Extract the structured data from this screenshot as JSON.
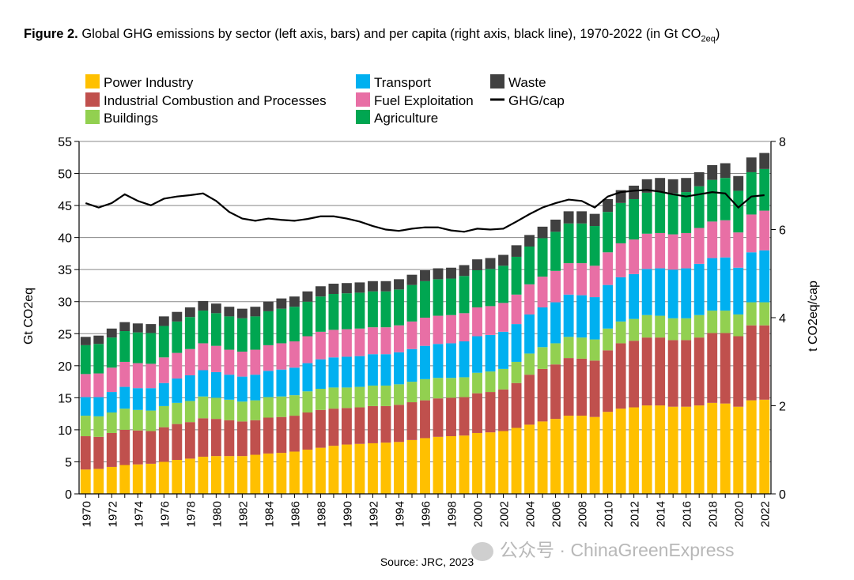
{
  "figure": {
    "label": "Figure 2.",
    "title_text": "Global GHG emissions by sector (left axis, bars) and per capita (right axis, black line), 1970-2022 (in Gt CO",
    "title_sub": "2eq",
    "title_end": ")",
    "source": "Source: JRC, 2023",
    "watermark": "公众号 · ChinaGreenExpress"
  },
  "chart_data": {
    "type": "bar",
    "stacked": true,
    "title": "Global GHG emissions by sector (left axis, bars) and per capita (right axis, black line), 1970-2022 (in Gt CO2eq)",
    "ylabel_left": "Gt CO2eq",
    "ylabel_right": "t CO2eq/cap",
    "ylim_left": [
      0,
      55
    ],
    "ylim_right": [
      0,
      8
    ],
    "yticks_left": [
      0,
      5,
      10,
      15,
      20,
      25,
      30,
      35,
      40,
      45,
      50,
      55
    ],
    "yticks_right": [
      0,
      2,
      4,
      6,
      8
    ],
    "grid": true,
    "legend_position": "top",
    "categories": [
      "1970",
      "1971",
      "1972",
      "1973",
      "1974",
      "1975",
      "1976",
      "1977",
      "1978",
      "1979",
      "1980",
      "1981",
      "1982",
      "1983",
      "1984",
      "1985",
      "1986",
      "1987",
      "1988",
      "1989",
      "1990",
      "1991",
      "1992",
      "1993",
      "1994",
      "1995",
      "1996",
      "1997",
      "1998",
      "1999",
      "2000",
      "2001",
      "2002",
      "2003",
      "2004",
      "2005",
      "2006",
      "2007",
      "2008",
      "2009",
      "2010",
      "2011",
      "2012",
      "2013",
      "2014",
      "2015",
      "2016",
      "2017",
      "2018",
      "2019",
      "2020",
      "2021",
      "2022"
    ],
    "series": [
      {
        "name": "Power Industry",
        "color": "#ffc000",
        "values": [
          3.8,
          3.9,
          4.2,
          4.5,
          4.6,
          4.7,
          5.0,
          5.3,
          5.5,
          5.8,
          5.9,
          5.9,
          5.9,
          6.1,
          6.3,
          6.4,
          6.6,
          6.9,
          7.2,
          7.5,
          7.7,
          7.8,
          7.9,
          8.0,
          8.1,
          8.4,
          8.7,
          8.9,
          9.0,
          9.1,
          9.5,
          9.6,
          9.8,
          10.3,
          10.8,
          11.3,
          11.7,
          12.2,
          12.2,
          12.0,
          12.8,
          13.3,
          13.5,
          13.8,
          13.8,
          13.6,
          13.6,
          13.8,
          14.2,
          14.1,
          13.6,
          14.6,
          14.7
        ]
      },
      {
        "name": "Industrial Combustion and Processes",
        "color": "#c0504d",
        "values": [
          5.2,
          5.0,
          5.3,
          5.5,
          5.3,
          5.1,
          5.4,
          5.6,
          5.7,
          6.0,
          5.8,
          5.6,
          5.4,
          5.4,
          5.6,
          5.6,
          5.6,
          5.8,
          5.9,
          5.8,
          5.7,
          5.7,
          5.8,
          5.7,
          5.8,
          5.9,
          5.9,
          6.0,
          6.0,
          6.0,
          6.2,
          6.3,
          6.5,
          7.0,
          7.8,
          8.2,
          8.5,
          9.0,
          8.9,
          8.8,
          9.6,
          10.2,
          10.4,
          10.6,
          10.6,
          10.4,
          10.4,
          10.6,
          10.9,
          11.0,
          11.0,
          11.7,
          11.6
        ]
      },
      {
        "name": "Buildings",
        "color": "#92d050",
        "values": [
          3.2,
          3.2,
          3.2,
          3.3,
          3.2,
          3.2,
          3.3,
          3.3,
          3.3,
          3.4,
          3.3,
          3.2,
          3.1,
          3.1,
          3.2,
          3.2,
          3.2,
          3.3,
          3.3,
          3.3,
          3.2,
          3.2,
          3.2,
          3.2,
          3.2,
          3.2,
          3.3,
          3.2,
          3.1,
          3.1,
          3.2,
          3.2,
          3.2,
          3.3,
          3.3,
          3.4,
          3.3,
          3.3,
          3.3,
          3.3,
          3.4,
          3.4,
          3.4,
          3.5,
          3.4,
          3.4,
          3.4,
          3.5,
          3.5,
          3.5,
          3.4,
          3.6,
          3.6
        ]
      },
      {
        "name": "Transport",
        "color": "#00b0f0",
        "values": [
          2.9,
          3.0,
          3.2,
          3.4,
          3.4,
          3.5,
          3.6,
          3.8,
          4.0,
          4.1,
          4.0,
          3.9,
          3.9,
          4.0,
          4.1,
          4.2,
          4.3,
          4.4,
          4.6,
          4.7,
          4.8,
          4.8,
          4.9,
          4.9,
          5.0,
          5.1,
          5.2,
          5.3,
          5.4,
          5.6,
          5.7,
          5.7,
          5.8,
          5.9,
          6.1,
          6.2,
          6.4,
          6.6,
          6.6,
          6.6,
          6.8,
          6.9,
          7.0,
          7.2,
          7.4,
          7.6,
          7.8,
          8.0,
          8.2,
          8.3,
          7.3,
          7.8,
          8.1
        ]
      },
      {
        "name": "Fuel Exploitation",
        "color": "#e86fa5",
        "values": [
          3.6,
          3.7,
          3.8,
          3.9,
          3.9,
          3.8,
          4.0,
          4.0,
          4.1,
          4.2,
          4.1,
          3.9,
          3.9,
          3.9,
          4.0,
          4.1,
          4.1,
          4.2,
          4.3,
          4.3,
          4.3,
          4.3,
          4.2,
          4.2,
          4.2,
          4.3,
          4.4,
          4.4,
          4.4,
          4.4,
          4.5,
          4.5,
          4.5,
          4.6,
          4.7,
          4.8,
          4.9,
          4.9,
          5.0,
          4.9,
          5.1,
          5.3,
          5.4,
          5.5,
          5.5,
          5.5,
          5.5,
          5.6,
          5.7,
          5.8,
          5.5,
          5.9,
          6.2
        ]
      },
      {
        "name": "Agriculture",
        "color": "#00a651",
        "values": [
          4.5,
          4.6,
          4.7,
          4.8,
          4.8,
          4.8,
          4.9,
          4.9,
          5.0,
          5.1,
          5.1,
          5.2,
          5.2,
          5.2,
          5.3,
          5.4,
          5.4,
          5.4,
          5.5,
          5.6,
          5.6,
          5.6,
          5.6,
          5.6,
          5.6,
          5.7,
          5.7,
          5.7,
          5.7,
          5.8,
          5.8,
          5.8,
          5.8,
          5.9,
          5.9,
          6.0,
          6.1,
          6.2,
          6.2,
          6.2,
          6.3,
          6.3,
          6.3,
          6.4,
          6.4,
          6.4,
          6.4,
          6.5,
          6.5,
          6.6,
          6.5,
          6.6,
          6.5
        ]
      },
      {
        "name": "Waste",
        "color": "#404040",
        "values": [
          1.3,
          1.3,
          1.4,
          1.4,
          1.4,
          1.4,
          1.5,
          1.5,
          1.5,
          1.5,
          1.5,
          1.5,
          1.5,
          1.5,
          1.5,
          1.6,
          1.6,
          1.6,
          1.6,
          1.6,
          1.6,
          1.6,
          1.6,
          1.6,
          1.6,
          1.6,
          1.7,
          1.7,
          1.7,
          1.7,
          1.7,
          1.7,
          1.7,
          1.8,
          1.8,
          1.8,
          1.9,
          1.9,
          1.9,
          1.9,
          2.0,
          2.0,
          2.1,
          2.1,
          2.2,
          2.2,
          2.2,
          2.2,
          2.3,
          2.3,
          2.3,
          2.3,
          2.5
        ]
      }
    ],
    "line": {
      "name": "GHG/cap",
      "color": "#000000",
      "axis": "right",
      "values": [
        6.6,
        6.5,
        6.6,
        6.8,
        6.65,
        6.55,
        6.7,
        6.75,
        6.78,
        6.82,
        6.65,
        6.4,
        6.25,
        6.2,
        6.25,
        6.22,
        6.2,
        6.24,
        6.3,
        6.3,
        6.25,
        6.18,
        6.08,
        6.0,
        5.97,
        6.02,
        6.05,
        6.05,
        5.98,
        5.95,
        6.02,
        6.0,
        6.02,
        6.18,
        6.35,
        6.5,
        6.6,
        6.68,
        6.65,
        6.5,
        6.75,
        6.85,
        6.88,
        6.9,
        6.86,
        6.8,
        6.75,
        6.8,
        6.85,
        6.82,
        6.5,
        6.75,
        6.78
      ]
    },
    "legend": [
      "Power Industry",
      "Industrial Combustion and Processes",
      "Buildings",
      "Transport",
      "Fuel Exploitation",
      "Agriculture",
      "Waste",
      "GHG/cap"
    ]
  }
}
